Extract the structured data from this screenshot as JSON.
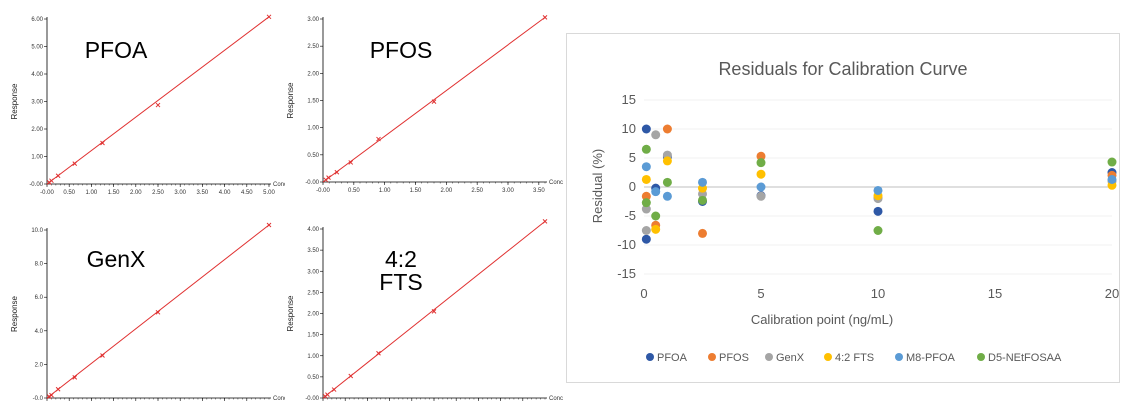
{
  "chart_data": [
    {
      "type": "line",
      "label": "PFOA",
      "ylabel": "Response",
      "xlabel": "Conc",
      "xlim": [
        0,
        5.0
      ],
      "ylim": [
        0,
        6.0
      ],
      "xticks": [
        "-0.00",
        "0.50",
        "1.00",
        "1.50",
        "2.00",
        "2.50",
        "3.00",
        "3.50",
        "4.00",
        "4.50",
        "5.00"
      ],
      "yticks": [
        "-0.00",
        "1.00",
        "2.00",
        "3.00",
        "4.00",
        "5.00",
        "6.00"
      ],
      "points": [
        [
          0.05,
          0.06
        ],
        [
          0.1,
          0.12
        ],
        [
          0.25,
          0.3
        ],
        [
          0.625,
          0.74
        ],
        [
          1.25,
          1.49
        ],
        [
          2.5,
          2.87
        ],
        [
          5.0,
          6.08
        ]
      ],
      "line_color": "#e03030"
    },
    {
      "type": "line",
      "label": "PFOS",
      "ylabel": "Response",
      "xlabel": "Conc",
      "xlim": [
        0,
        3.6
      ],
      "ylim": [
        0,
        3.0
      ],
      "xticks": [
        "-0.00",
        "0.50",
        "1.00",
        "1.50",
        "2.00",
        "2.50",
        "3.00",
        "3.50"
      ],
      "yticks": [
        "-0.00",
        "0.50",
        "1.00",
        "1.50",
        "2.00",
        "2.50",
        "3.00"
      ],
      "points": [
        [
          0.045,
          0.04
        ],
        [
          0.09,
          0.08
        ],
        [
          0.225,
          0.18
        ],
        [
          0.45,
          0.36
        ],
        [
          0.9,
          0.79
        ],
        [
          1.8,
          1.48
        ],
        [
          3.6,
          3.03
        ]
      ],
      "line_color": "#e03030"
    },
    {
      "type": "line",
      "label": "GenX",
      "ylabel": "Response",
      "xlabel": "Conc",
      "xlim": [
        0,
        5.0
      ],
      "ylim": [
        0,
        10.0
      ],
      "xticks": [
        "-0.00",
        "0.50",
        "1.00",
        "1.50",
        "2.00",
        "2.50",
        "3.00",
        "3.50",
        "4.00",
        "4.50"
      ],
      "yticks": [
        "-0.0",
        "2.0",
        "4.0",
        "6.0",
        "8.0",
        "10.0"
      ],
      "points": [
        [
          0.05,
          0.08
        ],
        [
          0.1,
          0.17
        ],
        [
          0.25,
          0.52
        ],
        [
          0.625,
          1.23
        ],
        [
          1.25,
          2.53
        ],
        [
          2.5,
          5.1
        ],
        [
          5.0,
          10.3
        ]
      ],
      "line_color": "#e03030"
    },
    {
      "type": "line",
      "label": "4:2\nFTS",
      "label_lines": [
        "4:2",
        "FTS"
      ],
      "ylabel": "Response",
      "xlabel": "Conc",
      "xlim": [
        0,
        5.0
      ],
      "ylim": [
        0,
        4.0
      ],
      "xticks": [
        "-0.00",
        "0.50",
        "1.00",
        "1.50",
        "2.00",
        "2.50",
        "3.00",
        "3.50",
        "4.00",
        "4.50"
      ],
      "yticks": [
        "-0.00",
        "0.50",
        "1.00",
        "1.50",
        "2.00",
        "2.50",
        "3.00",
        "3.50",
        "4.00"
      ],
      "points": [
        [
          0.05,
          0.04
        ],
        [
          0.1,
          0.08
        ],
        [
          0.25,
          0.2
        ],
        [
          0.625,
          0.52
        ],
        [
          1.25,
          1.06
        ],
        [
          2.5,
          2.05
        ],
        [
          5.0,
          4.18
        ]
      ],
      "line_color": "#e03030"
    },
    {
      "type": "scatter",
      "title": "Residuals for Calibration Curve",
      "xlabel": "Calibration point (ng/mL)",
      "ylabel": "Residual (%)",
      "xlim": [
        0,
        20
      ],
      "ylim": [
        -15,
        15
      ],
      "xticks": [
        0,
        5,
        10,
        15,
        20
      ],
      "yticks": [
        15,
        10,
        5,
        0,
        -5,
        -10,
        -15
      ],
      "legend_position": "bottom",
      "series": [
        {
          "name": "PFOA",
          "color": "#2e58a6",
          "points": [
            [
              0.1,
              10
            ],
            [
              0.1,
              -9
            ],
            [
              0.5,
              -0.2
            ],
            [
              1,
              5.2
            ],
            [
              2.5,
              -2.5
            ],
            [
              5,
              -1.5
            ],
            [
              10,
              -4.2
            ],
            [
              20,
              2.5
            ]
          ]
        },
        {
          "name": "PFOS",
          "color": "#ed7d31",
          "points": [
            [
              0.1,
              -1.6
            ],
            [
              0.5,
              -6.6
            ],
            [
              1,
              10
            ],
            [
              2.5,
              -8
            ],
            [
              5,
              5.3
            ],
            [
              10,
              -1.8
            ],
            [
              20,
              2
            ]
          ]
        },
        {
          "name": "GenX",
          "color": "#a5a5a5",
          "points": [
            [
              0.1,
              -7.5
            ],
            [
              0.1,
              -3.8
            ],
            [
              0.5,
              9
            ],
            [
              1,
              5.5
            ],
            [
              2.5,
              -1.2
            ],
            [
              5,
              -1.6
            ],
            [
              10,
              -2
            ],
            [
              20,
              1
            ]
          ]
        },
        {
          "name": "4:2 FTS",
          "color": "#ffc000",
          "points": [
            [
              0.1,
              1.3
            ],
            [
              0.5,
              -7.3
            ],
            [
              1,
              4.5
            ],
            [
              2.5,
              -0.2
            ],
            [
              5,
              2.2
            ],
            [
              10,
              -1.5
            ],
            [
              20,
              0.3
            ]
          ]
        },
        {
          "name": "M8-PFOA",
          "color": "#5b9bd5",
          "points": [
            [
              0.1,
              3.5
            ],
            [
              0.5,
              -0.8
            ],
            [
              1,
              -1.6
            ],
            [
              2.5,
              0.8
            ],
            [
              5,
              0
            ],
            [
              10,
              -0.6
            ],
            [
              20,
              1.3
            ]
          ]
        },
        {
          "name": "D5-NEtFOSAA",
          "color": "#70ad47",
          "points": [
            [
              0.1,
              6.5
            ],
            [
              0.1,
              -2.7
            ],
            [
              0.5,
              -5
            ],
            [
              1,
              0.8
            ],
            [
              2.5,
              -2.3
            ],
            [
              5,
              4.2
            ],
            [
              10,
              -7.5
            ],
            [
              20,
              4.3
            ]
          ]
        }
      ]
    }
  ]
}
